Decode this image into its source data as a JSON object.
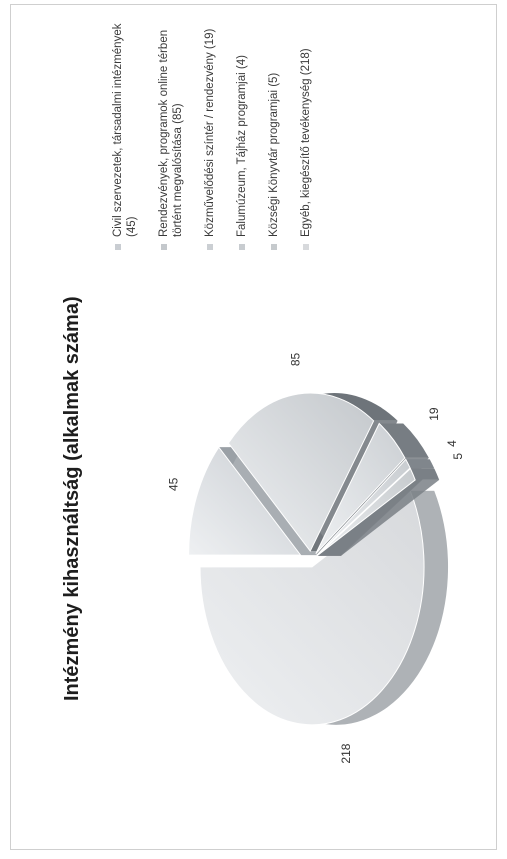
{
  "chart_data": {
    "type": "pie",
    "title": "Intézmény kihasználtság (alkalmak száma)",
    "categories": [
      "Civil szervezetek, társadalmi intézmények (45)",
      "Rendezvények, programok online térben történt megvalósítása (85)",
      "Közművelődési színtér / rendezvény (19)",
      "Falumúzeum, Tájház programjai (4)",
      "Községi Könyvtár programjai (5)",
      "Egyéb, kiegészítő tevékenység (218)"
    ],
    "values": [
      45,
      85,
      19,
      4,
      5,
      218
    ],
    "data_labels": [
      "45",
      "85",
      "19",
      "4",
      "5",
      "218"
    ],
    "colors": [
      "#c9cdd2",
      "#c4c8cc",
      "#cbcfd3",
      "#c8ccd0",
      "#c6cacd",
      "#d7d9dc"
    ],
    "legend_position": "right",
    "exploded": true,
    "three_d": true
  }
}
